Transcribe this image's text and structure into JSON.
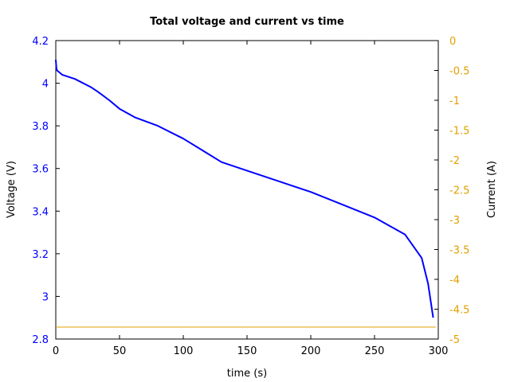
{
  "chart_data": {
    "type": "line",
    "title": "Total voltage and current vs time",
    "xlabel": "time (s)",
    "ylabel": "Voltage (V)",
    "y2label": "Current (A)",
    "xlim": [
      0,
      300
    ],
    "ylim": [
      2.8,
      4.2
    ],
    "y2lim": [
      -5,
      0
    ],
    "grid": false,
    "legend": null,
    "x_ticks": [
      "0",
      "50",
      "100",
      "150",
      "200",
      "250",
      "300"
    ],
    "y_ticks": [
      "4.2",
      "4",
      "3.8",
      "3.6",
      "3.4",
      "3.2",
      "3",
      "2.8"
    ],
    "y2_ticks": [
      "0",
      "-0.5",
      "-1",
      "-1.5",
      "-2",
      "-2.5",
      "-3",
      "-3.5",
      "-4",
      "-4.5",
      "-5"
    ],
    "series": [
      {
        "name": "Voltage",
        "axis": "left",
        "color": "#0000ff",
        "x": [
          0,
          0.5,
          1,
          5,
          15,
          28,
          33,
          42,
          50,
          62,
          80,
          100,
          115,
          130,
          150,
          175,
          200,
          225,
          250,
          262,
          274,
          287,
          292,
          296
        ],
        "y": [
          4.11,
          4.07,
          4.06,
          4.04,
          4.02,
          3.98,
          3.96,
          3.92,
          3.88,
          3.84,
          3.8,
          3.74,
          3.685,
          3.63,
          3.59,
          3.54,
          3.49,
          3.43,
          3.37,
          3.33,
          3.29,
          3.18,
          3.06,
          2.9
        ]
      },
      {
        "name": "Current",
        "axis": "right",
        "color": "#e0a000",
        "x": [
          0,
          298
        ],
        "y": [
          -4.8,
          -4.8
        ]
      }
    ]
  },
  "colors": {
    "voltage": "#0000ff",
    "current": "#e0a000",
    "axes": "#000000"
  }
}
